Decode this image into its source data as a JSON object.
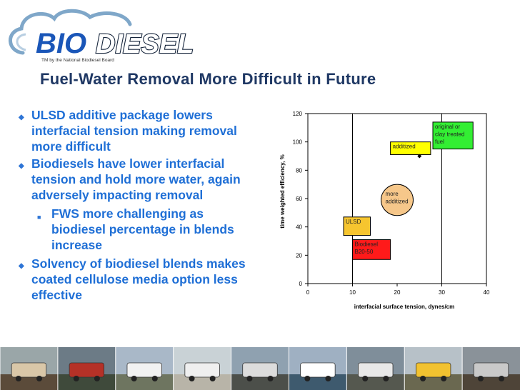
{
  "logo": {
    "bio_text": "BIO",
    "diesel_text": "DIESEL",
    "tagline": "TM by the National Biodiesel Board"
  },
  "slide": {
    "title": "Fuel-Water Removal More Difficult in Future"
  },
  "bullets": [
    {
      "level": 1,
      "text": "ULSD additive package lowers interfacial tension making removal more difficult"
    },
    {
      "level": 1,
      "text": "Biodiesels have lower interfacial tension and hold more water, again adversely impacting removal"
    },
    {
      "level": 2,
      "text": "FWS more challenging as biodiesel percentage in blends increase"
    },
    {
      "level": 1,
      "text": "Solvency of biodiesel blends makes coated cellulose media option less effective"
    }
  ],
  "chart_data": {
    "type": "scatter",
    "title": "",
    "xlabel": "interfacial surface tension, dynes/cm",
    "ylabel": "time weighted efficiency, %",
    "xlim": [
      0,
      40
    ],
    "ylim": [
      0,
      120
    ],
    "xticks": [
      0,
      10,
      20,
      30,
      40
    ],
    "yticks": [
      0,
      20,
      40,
      60,
      80,
      100,
      120
    ],
    "grid": "vertical",
    "vertical_lines_at": [
      10,
      30
    ],
    "points": [
      {
        "x": 25,
        "y": 90
      }
    ],
    "annotations": [
      {
        "text": "original or clay treated fuel",
        "lines": [
          "original or",
          "clay treated",
          "fuel"
        ],
        "shape": "rect",
        "color": "#33ee33",
        "x0": 28,
        "x1": 37,
        "y0": 95,
        "y1": 114
      },
      {
        "text": "additized",
        "lines": [
          "additized"
        ],
        "shape": "rect",
        "color": "#ffff00",
        "x0": 18.5,
        "x1": 27.5,
        "y0": 91,
        "y1": 100
      },
      {
        "text": "more additized",
        "lines": [
          "more",
          "additized"
        ],
        "shape": "ellipse",
        "color": "#f6c78a",
        "cx": 20,
        "cy": 59,
        "rx": 3.6,
        "ry": 11
      },
      {
        "text": "ULSD",
        "lines": [
          "ULSD"
        ],
        "shape": "rect",
        "color": "#f6c52f",
        "x0": 8,
        "x1": 14,
        "y0": 34,
        "y1": 47
      },
      {
        "text": "Biodiesel B20-50",
        "lines": [
          "Biodiesel",
          "B20-50"
        ],
        "shape": "rect",
        "color": "#ff1a1a",
        "x0": 10,
        "x1": 18.5,
        "y0": 17,
        "y1": 31
      }
    ]
  },
  "filmstrip": {
    "frames": [
      "scientist-icon",
      "tank-truck-icon",
      "airplane-icon",
      "pickup-truck-icon",
      "semi-truck-icon",
      "boat-icon",
      "bus-icon",
      "school-bus-icon",
      "vehicle-icon"
    ]
  }
}
